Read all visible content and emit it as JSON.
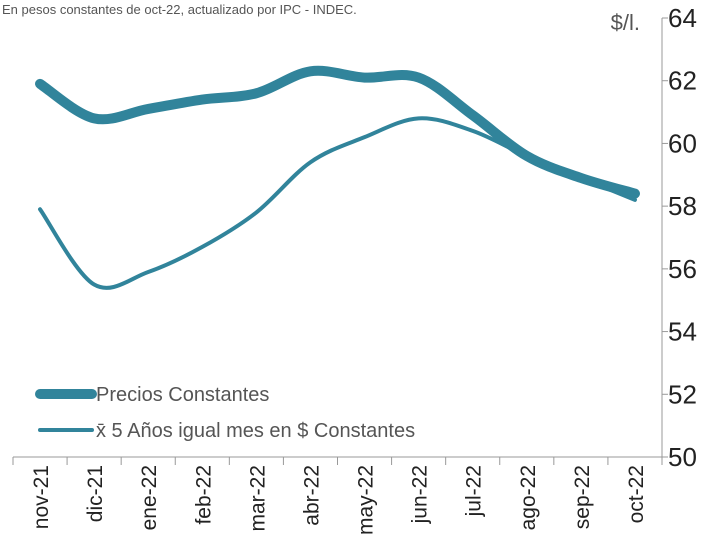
{
  "chart_data": {
    "type": "line",
    "subtitle": "En pesos constantes de oct-22, actualizado por IPC - INDEC.",
    "y_label": "$/l.",
    "categories": [
      "nov-21",
      "dic-21",
      "ene-22",
      "feb-22",
      "mar-22",
      "abr-22",
      "may-22",
      "jun-22",
      "jul-22",
      "ago-22",
      "sep-22",
      "oct-22"
    ],
    "series": [
      {
        "name": "Precios Constantes",
        "color": "#31849b",
        "values": [
          61.9,
          60.8,
          61.1,
          61.4,
          61.6,
          62.3,
          62.1,
          62.1,
          60.9,
          59.6,
          58.9,
          58.4
        ]
      },
      {
        "name": "x̄ 5 Años igual mes en $ Constantes",
        "color": "#31849b",
        "values": [
          57.9,
          55.5,
          55.9,
          56.7,
          57.8,
          59.4,
          60.2,
          60.8,
          60.4,
          59.6,
          58.9,
          58.2
        ]
      }
    ],
    "ylim": [
      50,
      64
    ],
    "yticks": [
      50,
      52,
      54,
      56,
      58,
      60,
      62,
      64
    ],
    "legend": "lower left"
  }
}
